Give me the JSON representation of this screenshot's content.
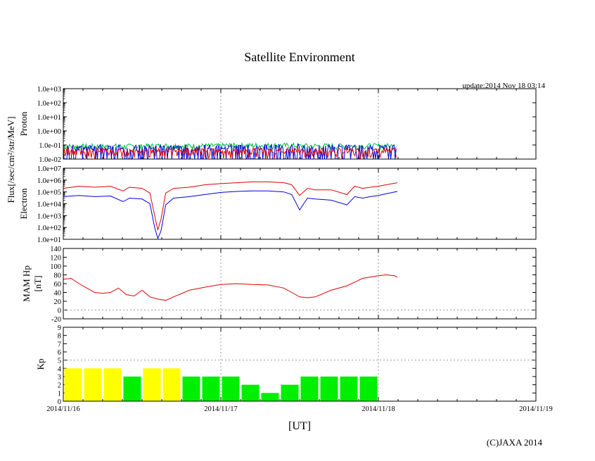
{
  "title": "Satellite Environment",
  "update": "update:2014 Nov 18 03:14",
  "copyright": "(C)JAXA 2014",
  "xlabel": "[UT]",
  "x_ticks": [
    "2014/11/16",
    "2014/11/17",
    "2014/11/18",
    "2014/11/19"
  ],
  "flux_unit_label": "Flux[/sec/cm²/str/MeV]",
  "colors": {
    "red": "#e00000",
    "blue": "#0000dd",
    "green": "#00bb44",
    "yellow": "#ffff00",
    "kp_green": "#00ee00",
    "grid": "#888888"
  },
  "chart_data": [
    {
      "type": "line",
      "title": "Proton",
      "ylabel": "Proton",
      "yscale": "log",
      "ylim": [
        0.01,
        1000
      ],
      "y_ticks": [
        "1.0e-02",
        "1.0e-01",
        "1.0e+00",
        "1.0e+01",
        "1.0e+02",
        "1.0e+03"
      ],
      "xlim_days": [
        0,
        3
      ],
      "series": [
        {
          "name": "proton-green",
          "color": "#00bb44",
          "x_days": [
            0,
            0.5,
            1.0,
            1.5,
            2.12
          ],
          "values": [
            0.07,
            0.075,
            0.08,
            0.075,
            0.07
          ]
        },
        {
          "name": "proton-blue",
          "color": "#0000dd",
          "x_days": [
            0,
            0.5,
            1.0,
            1.5,
            2.12
          ],
          "values": [
            0.06,
            0.06,
            0.065,
            0.06,
            0.06
          ]
        },
        {
          "name": "proton-red",
          "color": "#e00000",
          "x_days": [
            0,
            0.5,
            1.0,
            1.5,
            2.12
          ],
          "values": [
            0.02,
            0.02,
            0.02,
            0.02,
            0.02
          ]
        }
      ]
    },
    {
      "type": "line",
      "title": "Electron",
      "ylabel": "Electron",
      "yscale": "log",
      "ylim": [
        10,
        10000000
      ],
      "y_ticks": [
        "1.0e+01",
        "1.0e+02",
        "1.0e+03",
        "1.0e+04",
        "1.0e+05",
        "1.0e+06",
        "1.0e+07"
      ],
      "xlim_days": [
        0,
        3
      ],
      "series": [
        {
          "name": "electron-red",
          "color": "#e00000",
          "x_days": [
            0,
            0.1,
            0.2,
            0.3,
            0.38,
            0.42,
            0.5,
            0.55,
            0.58,
            0.6,
            0.62,
            0.65,
            0.7,
            0.8,
            0.9,
            1.0,
            1.1,
            1.2,
            1.3,
            1.4,
            1.45,
            1.5,
            1.55,
            1.6,
            1.7,
            1.8,
            1.85,
            1.9,
            1.95,
            2.0,
            2.05,
            2.12
          ],
          "values": [
            200000,
            300000,
            250000,
            300000,
            120000,
            250000,
            200000,
            80000,
            1000,
            60,
            500,
            80000,
            200000,
            250000,
            400000,
            500000,
            600000,
            700000,
            700000,
            600000,
            400000,
            50000,
            200000,
            150000,
            150000,
            60000,
            300000,
            200000,
            250000,
            300000,
            400000,
            600000
          ]
        },
        {
          "name": "electron-blue",
          "color": "#0000dd",
          "x_days": [
            0,
            0.1,
            0.2,
            0.3,
            0.38,
            0.42,
            0.5,
            0.55,
            0.58,
            0.6,
            0.62,
            0.65,
            0.7,
            0.8,
            0.9,
            1.0,
            1.1,
            1.2,
            1.3,
            1.4,
            1.45,
            1.5,
            1.55,
            1.6,
            1.7,
            1.8,
            1.85,
            1.9,
            1.95,
            2.0,
            2.05,
            2.12
          ],
          "values": [
            40000,
            50000,
            40000,
            45000,
            15000,
            30000,
            25000,
            10000,
            100,
            12,
            50,
            8000,
            30000,
            40000,
            60000,
            90000,
            110000,
            120000,
            120000,
            100000,
            60000,
            3000,
            30000,
            25000,
            20000,
            8000,
            40000,
            30000,
            40000,
            50000,
            70000,
            110000
          ]
        }
      ]
    },
    {
      "type": "line",
      "title": "MAM Hp",
      "ylabel": "MAM Hp [nT]",
      "ylim": [
        -20,
        140
      ],
      "y_ticks": [
        "-20",
        "0",
        "20",
        "40",
        "60",
        "80",
        "100",
        "120",
        "140"
      ],
      "xlim_days": [
        0,
        3
      ],
      "series": [
        {
          "name": "mam-hp",
          "color": "#e00000",
          "x_days": [
            0,
            0.05,
            0.1,
            0.15,
            0.2,
            0.25,
            0.3,
            0.35,
            0.4,
            0.45,
            0.5,
            0.55,
            0.6,
            0.65,
            0.7,
            0.8,
            0.9,
            1.0,
            1.1,
            1.2,
            1.3,
            1.4,
            1.45,
            1.5,
            1.55,
            1.6,
            1.7,
            1.8,
            1.9,
            2.0,
            2.05,
            2.1,
            2.12
          ],
          "values": [
            70,
            72,
            60,
            50,
            40,
            38,
            40,
            50,
            35,
            32,
            45,
            30,
            25,
            22,
            30,
            45,
            52,
            58,
            60,
            58,
            57,
            50,
            40,
            30,
            28,
            30,
            45,
            55,
            72,
            78,
            80,
            78,
            75
          ]
        }
      ]
    },
    {
      "type": "bar",
      "title": "Kp",
      "ylabel": "Kp",
      "ylim": [
        0,
        9
      ],
      "y_ticks": [
        "0",
        "1",
        "2",
        "3",
        "4",
        "5",
        "6",
        "7",
        "8",
        "9"
      ],
      "xlim_days": [
        0,
        3
      ],
      "bar_width_days": 0.125,
      "bars": [
        {
          "start_days": 0.0,
          "value": 4,
          "color": "#ffff00"
        },
        {
          "start_days": 0.125,
          "value": 4,
          "color": "#ffff00"
        },
        {
          "start_days": 0.25,
          "value": 4,
          "color": "#ffff00"
        },
        {
          "start_days": 0.375,
          "value": 3,
          "color": "#00ee00"
        },
        {
          "start_days": 0.5,
          "value": 4,
          "color": "#ffff00"
        },
        {
          "start_days": 0.625,
          "value": 4,
          "color": "#ffff00"
        },
        {
          "start_days": 0.75,
          "value": 3,
          "color": "#00ee00"
        },
        {
          "start_days": 0.875,
          "value": 3,
          "color": "#00ee00"
        },
        {
          "start_days": 1.0,
          "value": 3,
          "color": "#00ee00"
        },
        {
          "start_days": 1.125,
          "value": 2,
          "color": "#00ee00"
        },
        {
          "start_days": 1.25,
          "value": 1,
          "color": "#00ee00"
        },
        {
          "start_days": 1.375,
          "value": 2,
          "color": "#00ee00"
        },
        {
          "start_days": 1.5,
          "value": 3,
          "color": "#00ee00"
        },
        {
          "start_days": 1.625,
          "value": 3,
          "color": "#00ee00"
        },
        {
          "start_days": 1.75,
          "value": 3,
          "color": "#00ee00"
        },
        {
          "start_days": 1.875,
          "value": 3,
          "color": "#00ee00"
        }
      ]
    }
  ]
}
